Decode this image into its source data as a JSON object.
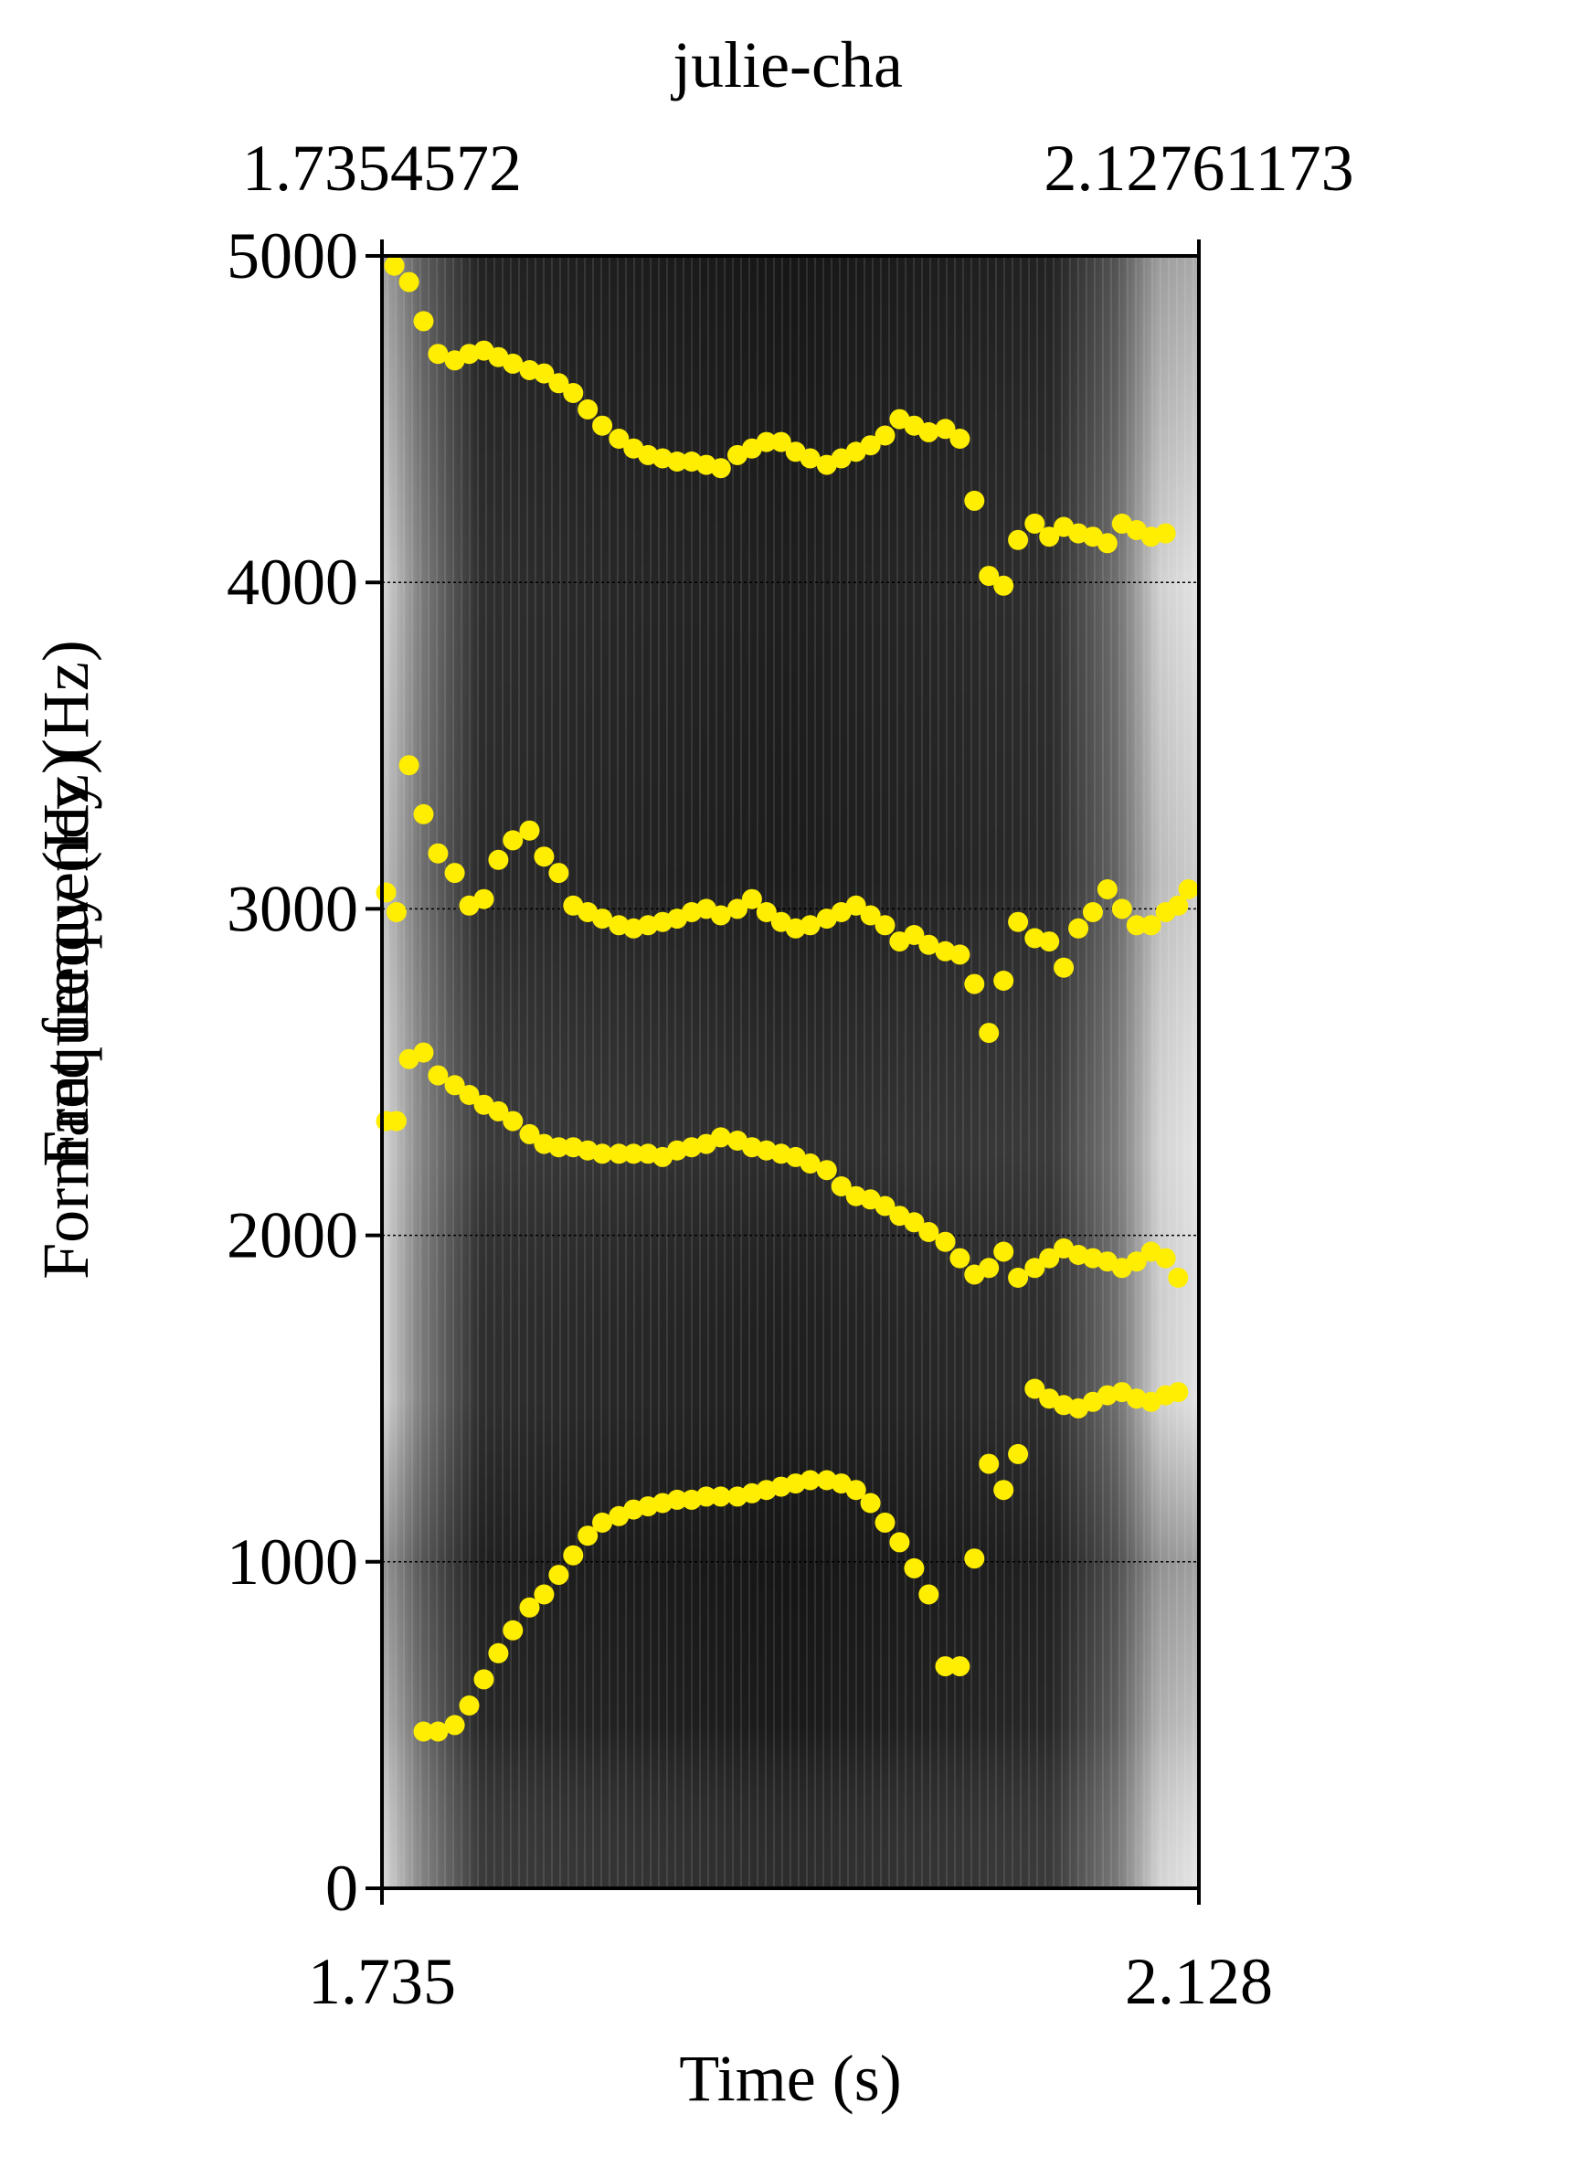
{
  "chart_data": {
    "type": "scatter",
    "title": "julie-cha",
    "top_time_labels": [
      "1.7354572",
      "2.12761173"
    ],
    "xlabel": "Time (s)",
    "ylabel_overlap": [
      "Formant frequency (Hz)",
      "Frequency (Hz)"
    ],
    "xlim": [
      1.735,
      2.128
    ],
    "ylim": [
      0,
      5000
    ],
    "x_ticks": [
      "1.735",
      "2.128"
    ],
    "y_ticks": [
      0,
      1000,
      2000,
      3000,
      4000,
      5000
    ],
    "y_gridlines": [
      1000,
      2000,
      3000,
      4000
    ],
    "background": "grayscale spectrogram",
    "point_color": "#ffee00",
    "series": [
      {
        "x": [
          1.741,
          1.748,
          1.755,
          1.762,
          1.77,
          1.777,
          1.784,
          1.791,
          1.798,
          1.806,
          1.813,
          1.82,
          1.827,
          1.834,
          1.841,
          1.849,
          1.856,
          1.863,
          1.87,
          1.877,
          1.884,
          1.891,
          1.898,
          1.906,
          1.913,
          1.92,
          1.927,
          1.934,
          1.941,
          1.949,
          1.956,
          1.963,
          1.97,
          1.977,
          1.984,
          1.991,
          1.998,
          2.006,
          2.013,
          2.02,
          2.027,
          2.034,
          2.041,
          2.049,
          2.056,
          2.063,
          2.07,
          2.077,
          2.084,
          2.091,
          2.098,
          2.105,
          2.112
        ],
        "y": [
          4970,
          4920,
          4800,
          4700,
          4680,
          4700,
          4710,
          4690,
          4670,
          4650,
          4640,
          4610,
          4580,
          4530,
          4480,
          4440,
          4410,
          4390,
          4380,
          4370,
          4370,
          4360,
          4350,
          4390,
          4410,
          4430,
          4430,
          4400,
          4380,
          4360,
          4380,
          4400,
          4420,
          4450,
          4500,
          4480,
          4460,
          4470,
          4440,
          4250,
          4020,
          3990,
          4130,
          4180,
          4140,
          4170,
          4150,
          4140,
          4120,
          4180,
          4160,
          4140,
          4150
        ]
      },
      {
        "x": [
          1.737,
          1.742,
          1.748,
          1.755,
          1.762,
          1.77,
          1.777,
          1.784,
          1.791,
          1.798,
          1.806,
          1.813,
          1.82,
          1.827,
          1.834,
          1.841,
          1.849,
          1.856,
          1.863,
          1.87,
          1.877,
          1.884,
          1.891,
          1.898,
          1.906,
          1.913,
          1.92,
          1.927,
          1.934,
          1.941,
          1.949,
          1.956,
          1.963,
          1.97,
          1.977,
          1.984,
          1.991,
          1.998,
          2.006,
          2.013,
          2.02,
          2.027,
          2.034,
          2.041,
          2.049,
          2.056,
          2.063,
          2.07,
          2.077,
          2.084,
          2.091,
          2.098,
          2.105,
          2.112,
          2.118,
          2.123
        ],
        "y": [
          3050,
          2990,
          3440,
          3290,
          3170,
          3110,
          3010,
          3030,
          3150,
          3210,
          3240,
          3160,
          3110,
          3010,
          2990,
          2970,
          2950,
          2940,
          2950,
          2960,
          2970,
          2990,
          3000,
          2980,
          3000,
          3030,
          2990,
          2960,
          2940,
          2950,
          2970,
          2990,
          3010,
          2980,
          2950,
          2900,
          2920,
          2890,
          2870,
          2860,
          2770,
          2620,
          2780,
          2960,
          2910,
          2900,
          2820,
          2940,
          2990,
          3060,
          3000,
          2950,
          2950,
          2990,
          3010,
          3060
        ]
      },
      {
        "x": [
          1.737,
          1.742,
          1.748,
          1.755,
          1.762,
          1.77,
          1.777,
          1.784,
          1.791,
          1.798,
          1.806,
          1.813,
          1.82,
          1.827,
          1.834,
          1.841,
          1.849,
          1.856,
          1.863,
          1.87,
          1.877,
          1.884,
          1.891,
          1.898,
          1.906,
          1.913,
          1.92,
          1.927,
          1.934,
          1.941,
          1.949,
          1.956,
          1.963,
          1.97,
          1.977,
          1.984,
          1.991,
          1.998,
          2.006,
          2.013,
          2.02,
          2.027,
          2.034,
          2.041,
          2.049,
          2.056,
          2.063,
          2.07,
          2.077,
          2.084,
          2.091,
          2.098,
          2.105,
          2.112,
          2.118
        ],
        "y": [
          2350,
          2350,
          2540,
          2560,
          2490,
          2460,
          2430,
          2400,
          2380,
          2350,
          2310,
          2280,
          2270,
          2270,
          2260,
          2250,
          2250,
          2250,
          2250,
          2240,
          2260,
          2270,
          2280,
          2300,
          2290,
          2270,
          2260,
          2250,
          2240,
          2220,
          2200,
          2150,
          2120,
          2110,
          2090,
          2060,
          2040,
          2010,
          1980,
          1930,
          1880,
          1900,
          1950,
          1870,
          1900,
          1930,
          1960,
          1940,
          1930,
          1920,
          1900,
          1920,
          1950,
          1930,
          1870
        ]
      },
      {
        "x": [
          1.755,
          1.762,
          1.77,
          1.777,
          1.784,
          1.791,
          1.798,
          1.806,
          1.813,
          1.82,
          1.827,
          1.834,
          1.841,
          1.849,
          1.856,
          1.863,
          1.87,
          1.877,
          1.884,
          1.891,
          1.898,
          1.906,
          1.913,
          1.92,
          1.927,
          1.934,
          1.941,
          1.949,
          1.956,
          1.963,
          1.97,
          1.977,
          1.984,
          1.991,
          1.998,
          2.006,
          2.013,
          2.02,
          2.027,
          2.034,
          2.041,
          2.049,
          2.056,
          2.063,
          2.07,
          2.077,
          2.084,
          2.091,
          2.098,
          2.105,
          2.112,
          2.118
        ],
        "y": [
          480,
          480,
          500,
          560,
          640,
          720,
          790,
          860,
          900,
          960,
          1020,
          1080,
          1120,
          1140,
          1160,
          1170,
          1180,
          1190,
          1190,
          1200,
          1200,
          1200,
          1210,
          1220,
          1230,
          1240,
          1250,
          1250,
          1240,
          1220,
          1180,
          1120,
          1060,
          980,
          900,
          680,
          680,
          1010,
          1300,
          1220,
          1330,
          1530,
          1500,
          1480,
          1470,
          1490,
          1510,
          1520,
          1500,
          1490,
          1510,
          1520
        ]
      }
    ]
  }
}
